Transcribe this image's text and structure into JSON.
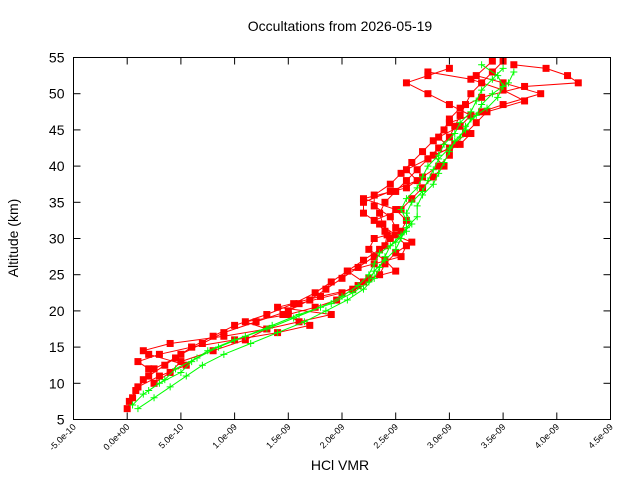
{
  "chart_data": {
    "type": "scatter",
    "title": "Occultations from 2026-05-19",
    "xlabel": "HCl VMR",
    "ylabel": "Altitude (km)",
    "xlim": [
      -5e-10,
      4.5e-09
    ],
    "ylim": [
      5,
      55
    ],
    "xticks": [
      "-5.0e-10",
      "0.0e+00",
      "5.0e-10",
      "1.0e-09",
      "1.5e-09",
      "2.0e-09",
      "2.5e-09",
      "3.0e-09",
      "3.5e-09",
      "4.0e-09",
      "4.5e-09"
    ],
    "xtick_values": [
      -5e-10,
      0,
      5e-10,
      1e-09,
      1.5e-09,
      2e-09,
      2.5e-09,
      3e-09,
      3.5e-09,
      4e-09,
      4.5e-09
    ],
    "yticks": [
      "5",
      "10",
      "15",
      "20",
      "25",
      "30",
      "35",
      "40",
      "45",
      "50",
      "55"
    ],
    "ytick_values": [
      5,
      10,
      15,
      20,
      25,
      30,
      35,
      40,
      45,
      50,
      55
    ],
    "grid": false,
    "series": [
      {
        "color": "#ff0000",
        "marker": "square",
        "connected": true,
        "profiles": [
          [
            [
              0.0,
              6.5
            ],
            [
              5e-11,
              8.0
            ],
            [
              1e-10,
              9.5
            ],
            [
              2e-10,
              11.0
            ],
            [
              3.5e-10,
              12.5
            ],
            [
              5e-10,
              14.0
            ],
            [
              7e-10,
              15.5
            ],
            [
              9e-10,
              17.0
            ],
            [
              1.2e-09,
              18.5
            ],
            [
              1.5e-09,
              20.0
            ],
            [
              1.7e-09,
              21.5
            ],
            [
              1.85e-09,
              23.0
            ],
            [
              2e-09,
              24.5
            ],
            [
              2.15e-09,
              26.0
            ],
            [
              2.3e-09,
              27.5
            ],
            [
              2.4e-09,
              29.0
            ],
            [
              2.42e-09,
              30.5
            ],
            [
              2.38e-09,
              32.0
            ],
            [
              2.35e-09,
              33.5
            ],
            [
              2.4e-09,
              35.0
            ],
            [
              2.5e-09,
              36.5
            ],
            [
              2.6e-09,
              38.0
            ],
            [
              2.7e-09,
              39.5
            ],
            [
              2.8e-09,
              41.0
            ],
            [
              2.9e-09,
              42.5
            ],
            [
              3e-09,
              44.0
            ],
            [
              3.05e-09,
              45.5
            ],
            [
              3.1e-09,
              47.0
            ],
            [
              3.15e-09,
              48.5
            ],
            [
              3.2e-09,
              50.0
            ],
            [
              3.3e-09,
              51.5
            ],
            [
              3.4e-09,
              53.0
            ],
            [
              3.5e-09,
              54.5
            ]
          ],
          [
            [
              2e-11,
              7.5
            ],
            [
              8e-11,
              9.0
            ],
            [
              1.5e-10,
              10.5
            ],
            [
              2.5e-10,
              12.0
            ],
            [
              4.5e-10,
              13.5
            ],
            [
              6e-10,
              15.0
            ],
            [
              8e-10,
              16.5
            ],
            [
              1e-09,
              18.0
            ],
            [
              1.3e-09,
              19.5
            ],
            [
              1.55e-09,
              21.0
            ],
            [
              1.75e-09,
              22.5
            ],
            [
              1.9e-09,
              24.0
            ],
            [
              2.05e-09,
              25.5
            ],
            [
              2.2e-09,
              27.0
            ],
            [
              2.35e-09,
              28.5
            ],
            [
              2.45e-09,
              30.0
            ],
            [
              2.5e-09,
              31.5
            ],
            [
              2.45e-09,
              33.0
            ],
            [
              2.3e-09,
              34.5
            ],
            [
              2.3e-09,
              36.0
            ],
            [
              2.45e-09,
              37.5
            ],
            [
              2.55e-09,
              39.0
            ],
            [
              2.65e-09,
              40.5
            ],
            [
              2.75e-09,
              42.0
            ],
            [
              2.85e-09,
              43.5
            ],
            [
              2.95e-09,
              45.0
            ],
            [
              3e-09,
              46.5
            ],
            [
              3.1e-09,
              48.0
            ],
            [
              3.3e-09,
              49.5
            ],
            [
              3.7e-09,
              51.0
            ],
            [
              4.2e-09,
              51.5
            ],
            [
              4.1e-09,
              52.5
            ],
            [
              3.9e-09,
              53.5
            ],
            [
              3.6e-09,
              54.0
            ]
          ],
          [
            [
              1e-10,
              9.5
            ],
            [
              3e-10,
              11.0
            ],
            [
              5.5e-10,
              12.5
            ],
            [
              2e-10,
              14.0
            ],
            [
              1.5e-10,
              14.5
            ],
            [
              4e-10,
              15.5
            ],
            [
              9e-10,
              16.5
            ],
            [
              1.3e-09,
              17.5
            ],
            [
              1.6e-09,
              18.5
            ],
            [
              1.9e-09,
              19.5
            ],
            [
              1.4e-09,
              20.5
            ],
            [
              1.8e-09,
              22.0
            ],
            [
              2.1e-09,
              23.0
            ],
            [
              2.25e-09,
              24.5
            ],
            [
              2.5e-09,
              25.5
            ],
            [
              2.4e-09,
              27.0
            ],
            [
              2.25e-09,
              28.5
            ],
            [
              2.3e-09,
              30.0
            ],
            [
              2.55e-09,
              31.0
            ],
            [
              2.6e-09,
              32.5
            ],
            [
              2.5e-09,
              34.0
            ],
            [
              2.2e-09,
              35.5
            ],
            [
              2.6e-09,
              37.0
            ],
            [
              2.75e-09,
              38.5
            ],
            [
              2.9e-09,
              40.0
            ],
            [
              3e-09,
              41.5
            ],
            [
              3.05e-09,
              43.0
            ],
            [
              3.15e-09,
              44.5
            ],
            [
              3.25e-09,
              46.0
            ],
            [
              3.35e-09,
              47.5
            ],
            [
              3.7e-09,
              49.0
            ],
            [
              3.5e-09,
              50.5
            ],
            [
              3.2e-09,
              52.0
            ],
            [
              2.8e-09,
              53.0
            ]
          ],
          [
            [
              2e-10,
              12.0
            ],
            [
              1e-10,
              13.0
            ],
            [
              3e-10,
              14.0
            ],
            [
              6e-10,
              15.0
            ],
            [
              1e-09,
              16.0
            ],
            [
              1.4e-09,
              17.0
            ],
            [
              1.7e-09,
              18.0
            ],
            [
              1.45e-09,
              19.5
            ],
            [
              1.6e-09,
              21.0
            ],
            [
              2e-09,
              22.5
            ],
            [
              2.2e-09,
              24.0
            ],
            [
              2.05e-09,
              25.5
            ],
            [
              2.3e-09,
              26.5
            ],
            [
              2.55e-09,
              27.5
            ],
            [
              2.6e-09,
              29.0
            ],
            [
              2.5e-09,
              30.5
            ],
            [
              2.35e-09,
              32.0
            ],
            [
              2.2e-09,
              33.5
            ],
            [
              2.2e-09,
              35.0
            ],
            [
              2.45e-09,
              36.5
            ],
            [
              2.7e-09,
              38.0
            ],
            [
              2.6e-09,
              39.5
            ],
            [
              2.8e-09,
              41.0
            ],
            [
              3e-09,
              42.5
            ],
            [
              2.9e-09,
              44.0
            ],
            [
              3.1e-09,
              45.5
            ],
            [
              3.2e-09,
              47.0
            ],
            [
              3e-09,
              48.5
            ],
            [
              2.8e-09,
              50.0
            ],
            [
              2.6e-09,
              51.5
            ],
            [
              2.8e-09,
              52.5
            ],
            [
              3e-09,
              53.5
            ]
          ],
          [
            [
              2.5e-10,
              10.0
            ],
            [
              4e-10,
              11.5
            ],
            [
              5e-10,
              13.0
            ],
            [
              8e-10,
              14.5
            ],
            [
              1.1e-09,
              16.0
            ],
            [
              1.3e-09,
              17.5
            ],
            [
              1.1e-09,
              18.5
            ],
            [
              1.5e-09,
              19.5
            ],
            [
              1.75e-09,
              20.5
            ],
            [
              1.95e-09,
              21.5
            ],
            [
              2.15e-09,
              23.5
            ],
            [
              2.35e-09,
              25.0
            ],
            [
              2.4e-09,
              26.5
            ],
            [
              2.5e-09,
              28.0
            ],
            [
              2.65e-09,
              29.5
            ],
            [
              2.4e-09,
              31.0
            ],
            [
              2.3e-09,
              32.5
            ],
            [
              2.55e-09,
              34.0
            ],
            [
              2.65e-09,
              35.5
            ],
            [
              2.75e-09,
              37.0
            ],
            [
              2.85e-09,
              38.5
            ],
            [
              2.95e-09,
              40.0
            ],
            [
              2.85e-09,
              41.5
            ],
            [
              3.1e-09,
              43.0
            ],
            [
              3.2e-09,
              44.5
            ],
            [
              3e-09,
              46.0
            ],
            [
              3.3e-09,
              47.5
            ],
            [
              3.5e-09,
              48.5
            ],
            [
              3.85e-09,
              50.0
            ],
            [
              3.5e-09,
              51.5
            ],
            [
              3.25e-09,
              52.5
            ],
            [
              3.4e-09,
              54.5
            ]
          ]
        ]
      },
      {
        "color": "#00ff00",
        "marker": "plus",
        "connected": true,
        "profiles": [
          [
            [
              5e-11,
              7.0
            ],
            [
              1.5e-10,
              8.5
            ],
            [
              3e-10,
              10.0
            ],
            [
              5e-10,
              11.5
            ],
            [
              6e-10,
              13.0
            ],
            [
              7.5e-10,
              14.5
            ],
            [
              1e-09,
              16.0
            ],
            [
              1.3e-09,
              17.5
            ],
            [
              1.55e-09,
              19.0
            ],
            [
              1.8e-09,
              20.5
            ],
            [
              2e-09,
              22.0
            ],
            [
              2.15e-09,
              23.5
            ],
            [
              2.25e-09,
              25.0
            ],
            [
              2.3e-09,
              26.5
            ],
            [
              2.35e-09,
              28.0
            ],
            [
              2.5e-09,
              29.5
            ],
            [
              2.6e-09,
              31.0
            ],
            [
              2.6e-09,
              32.5
            ],
            [
              2.55e-09,
              34.0
            ],
            [
              2.6e-09,
              35.5
            ],
            [
              2.7e-09,
              37.0
            ],
            [
              2.75e-09,
              38.5
            ],
            [
              2.8e-09,
              40.0
            ],
            [
              2.9e-09,
              41.5
            ],
            [
              2.95e-09,
              43.0
            ],
            [
              3.05e-09,
              44.5
            ],
            [
              3.1e-09,
              46.0
            ],
            [
              3.2e-09,
              47.5
            ],
            [
              3.25e-09,
              49.0
            ],
            [
              3.3e-09,
              50.5
            ],
            [
              3.4e-09,
              52.0
            ],
            [
              3.5e-09,
              53.5
            ]
          ],
          [
            [
              1e-10,
              6.5
            ],
            [
              2.5e-10,
              8.0
            ],
            [
              4e-10,
              9.5
            ],
            [
              5.5e-10,
              11.0
            ],
            [
              7e-10,
              12.5
            ],
            [
              9e-10,
              14.0
            ],
            [
              1.15e-09,
              15.5
            ],
            [
              1.4e-09,
              17.0
            ],
            [
              1.65e-09,
              18.5
            ],
            [
              1.85e-09,
              20.0
            ],
            [
              2.05e-09,
              21.5
            ],
            [
              2.2e-09,
              23.0
            ],
            [
              2.3e-09,
              24.5
            ],
            [
              2.35e-09,
              26.0
            ],
            [
              2.4e-09,
              27.5
            ],
            [
              2.45e-09,
              29.0
            ],
            [
              2.55e-09,
              30.5
            ],
            [
              2.65e-09,
              32.0
            ],
            [
              2.6e-09,
              33.5
            ],
            [
              2.65e-09,
              35.0
            ],
            [
              2.75e-09,
              36.5
            ],
            [
              2.8e-09,
              38.0
            ],
            [
              2.85e-09,
              39.5
            ],
            [
              2.9e-09,
              41.0
            ],
            [
              3e-09,
              42.5
            ],
            [
              3.1e-09,
              44.0
            ],
            [
              3.15e-09,
              45.5
            ],
            [
              3.25e-09,
              47.0
            ],
            [
              3.3e-09,
              48.5
            ],
            [
              3.4e-09,
              50.0
            ],
            [
              3.55e-09,
              51.5
            ],
            [
              3.6e-09,
              53.0
            ]
          ],
          [
            [
              2e-10,
              9.0
            ],
            [
              3.5e-10,
              10.5
            ],
            [
              4.5e-10,
              12.0
            ],
            [
              6.5e-10,
              13.5
            ],
            [
              8.5e-10,
              15.0
            ],
            [
              1.1e-09,
              16.5
            ],
            [
              1.35e-09,
              18.0
            ],
            [
              1.6e-09,
              19.5
            ],
            [
              1.9e-09,
              21.0
            ],
            [
              2.1e-09,
              22.5
            ],
            [
              2.25e-09,
              24.0
            ],
            [
              2.3e-09,
              25.5
            ],
            [
              2.4e-09,
              27.0
            ],
            [
              2.5e-09,
              28.5
            ],
            [
              2.55e-09,
              30.0
            ],
            [
              2.6e-09,
              31.5
            ],
            [
              2.7e-09,
              33.0
            ],
            [
              2.7e-09,
              34.5
            ],
            [
              2.75e-09,
              36.0
            ],
            [
              2.85e-09,
              37.5
            ],
            [
              2.9e-09,
              39.0
            ],
            [
              2.95e-09,
              40.5
            ],
            [
              3e-09,
              42.0
            ],
            [
              3.05e-09,
              43.5
            ],
            [
              3.15e-09,
              45.0
            ],
            [
              3.2e-09,
              46.5
            ],
            [
              3.35e-09,
              48.0
            ],
            [
              3.45e-09,
              49.5
            ],
            [
              3.5e-09,
              51.0
            ],
            [
              3.45e-09,
              52.5
            ],
            [
              3.3e-09,
              54.0
            ]
          ]
        ]
      }
    ]
  }
}
